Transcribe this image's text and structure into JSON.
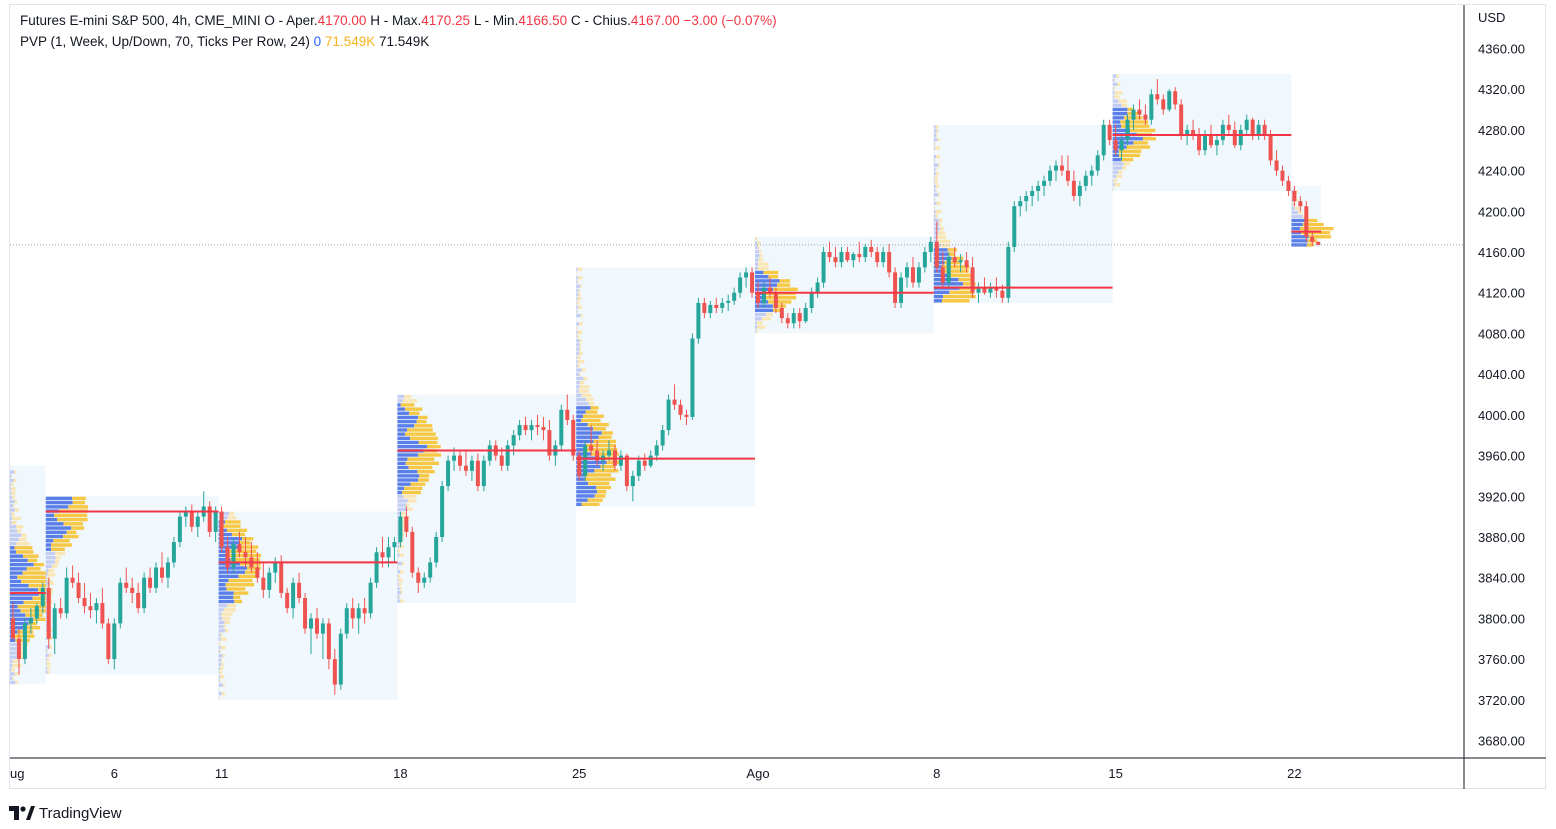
{
  "legend": {
    "line1": {
      "symbol_text": "Futures E-mini S&P 500, 4h, CME_MINI",
      "open_label": "O - Aper.",
      "open_value": "4170.00",
      "high_label": "H - Max.",
      "high_value": "4170.25",
      "low_label": "L - Min.",
      "low_value": "4166.50",
      "close_label": "C - Chius.",
      "close_value": "4167.00",
      "change": "−3.00 (−0.07%)"
    },
    "line2": {
      "indicator": "PVP (1, Week, Up/Down, 70, Ticks Per Row, 24)",
      "value_blue": "0",
      "value_yellow": "71.549K",
      "value_dark": "71.549K"
    }
  },
  "brand": {
    "name": "TradingView",
    "logo_icon": "tradingview-logo-icon"
  },
  "colors": {
    "up": "#26a69a",
    "down": "#ef5350",
    "poc": "#f23645",
    "profile_bg": "#e3f2fb",
    "vol_up": "#5b7fe8",
    "vol_down": "#f7c845",
    "vol_up_light": "#c3cdf3",
    "vol_down_light": "#fae6b4"
  },
  "chart_data": {
    "type": "candlestick",
    "timeframe": "4h",
    "currency": "USD",
    "ylim": [
      3660,
      4380
    ],
    "yticks": [
      "3680.00",
      "3720.00",
      "3760.00",
      "3800.00",
      "3840.00",
      "3880.00",
      "3920.00",
      "3960.00",
      "4000.00",
      "4040.00",
      "4080.00",
      "4120.00",
      "4160.00",
      "4200.00",
      "4240.00",
      "4280.00",
      "4320.00",
      "4360.00"
    ],
    "x_labels": [
      {
        "label": "ug",
        "index": 0
      },
      {
        "label": "6",
        "index": 17
      },
      {
        "label": "11",
        "index": 35
      },
      {
        "label": "18",
        "index": 65
      },
      {
        "label": "25",
        "index": 95
      },
      {
        "label": "Ago",
        "index": 125
      },
      {
        "label": "8",
        "index": 155
      },
      {
        "label": "15",
        "index": 185
      },
      {
        "label": "22",
        "index": 215
      }
    ],
    "last_price": 4167.0,
    "weekly_profiles": [
      {
        "start": 0,
        "end": 6,
        "top": 3950,
        "bottom": 3735,
        "poc": 3825
      },
      {
        "start": 6,
        "end": 35,
        "top": 3920,
        "bottom": 3745,
        "poc": 3905
      },
      {
        "start": 35,
        "end": 65,
        "top": 3905,
        "bottom": 3720,
        "poc": 3855
      },
      {
        "start": 65,
        "end": 95,
        "top": 4020,
        "bottom": 3815,
        "poc": 3965
      },
      {
        "start": 95,
        "end": 125,
        "top": 4145,
        "bottom": 3910,
        "poc": 3957
      },
      {
        "start": 125,
        "end": 155,
        "top": 4175,
        "bottom": 4080,
        "poc": 4120
      },
      {
        "start": 155,
        "end": 185,
        "top": 4285,
        "bottom": 4110,
        "poc": 4125
      },
      {
        "start": 185,
        "end": 215,
        "top": 4335,
        "bottom": 4220,
        "poc": 4275
      },
      {
        "start": 215,
        "end": 220,
        "top": 4225,
        "bottom": 4165,
        "poc": 4180
      }
    ],
    "candles": [
      [
        3800,
        3815,
        3780,
        3780
      ],
      [
        3780,
        3790,
        3745,
        3760
      ],
      [
        3760,
        3800,
        3755,
        3795
      ],
      [
        3795,
        3810,
        3785,
        3800
      ],
      [
        3800,
        3815,
        3795,
        3812
      ],
      [
        3812,
        3835,
        3805,
        3830
      ],
      [
        3830,
        3840,
        3770,
        3780
      ],
      [
        3780,
        3815,
        3765,
        3810
      ],
      [
        3810,
        3820,
        3800,
        3805
      ],
      [
        3805,
        3850,
        3800,
        3840
      ],
      [
        3840,
        3852,
        3830,
        3835
      ],
      [
        3835,
        3845,
        3815,
        3820
      ],
      [
        3820,
        3835,
        3805,
        3812
      ],
      [
        3812,
        3825,
        3800,
        3808
      ],
      [
        3808,
        3820,
        3795,
        3815
      ],
      [
        3815,
        3830,
        3790,
        3795
      ],
      [
        3795,
        3800,
        3755,
        3760
      ],
      [
        3760,
        3800,
        3750,
        3795
      ],
      [
        3795,
        3840,
        3790,
        3835
      ],
      [
        3835,
        3850,
        3825,
        3830
      ],
      [
        3830,
        3840,
        3815,
        3825
      ],
      [
        3825,
        3835,
        3805,
        3810
      ],
      [
        3810,
        3845,
        3805,
        3840
      ],
      [
        3840,
        3850,
        3825,
        3830
      ],
      [
        3830,
        3855,
        3825,
        3850
      ],
      [
        3850,
        3865,
        3835,
        3840
      ],
      [
        3840,
        3860,
        3830,
        3855
      ],
      [
        3855,
        3880,
        3850,
        3875
      ],
      [
        3875,
        3905,
        3870,
        3900
      ],
      [
        3900,
        3910,
        3890,
        3905
      ],
      [
        3905,
        3912,
        3885,
        3890
      ],
      [
        3890,
        3905,
        3880,
        3900
      ],
      [
        3900,
        3925,
        3895,
        3910
      ],
      [
        3910,
        3915,
        3880,
        3885
      ],
      [
        3885,
        3910,
        3875,
        3905
      ],
      [
        3905,
        3910,
        3865,
        3870
      ],
      [
        3870,
        3880,
        3845,
        3850
      ],
      [
        3850,
        3878,
        3845,
        3873
      ],
      [
        3873,
        3885,
        3860,
        3865
      ],
      [
        3865,
        3880,
        3850,
        3860
      ],
      [
        3860,
        3875,
        3845,
        3850
      ],
      [
        3850,
        3865,
        3835,
        3840
      ],
      [
        3840,
        3855,
        3820,
        3828
      ],
      [
        3828,
        3850,
        3820,
        3845
      ],
      [
        3845,
        3860,
        3835,
        3855
      ],
      [
        3855,
        3862,
        3820,
        3825
      ],
      [
        3825,
        3830,
        3805,
        3810
      ],
      [
        3810,
        3840,
        3800,
        3835
      ],
      [
        3835,
        3845,
        3815,
        3820
      ],
      [
        3820,
        3825,
        3785,
        3790
      ],
      [
        3790,
        3805,
        3765,
        3800
      ],
      [
        3800,
        3810,
        3780,
        3785
      ],
      [
        3785,
        3800,
        3760,
        3795
      ],
      [
        3795,
        3800,
        3750,
        3760
      ],
      [
        3760,
        3770,
        3725,
        3735
      ],
      [
        3735,
        3790,
        3730,
        3785
      ],
      [
        3785,
        3815,
        3780,
        3810
      ],
      [
        3810,
        3820,
        3790,
        3800
      ],
      [
        3800,
        3815,
        3785,
        3810
      ],
      [
        3810,
        3820,
        3795,
        3805
      ],
      [
        3805,
        3840,
        3800,
        3835
      ],
      [
        3835,
        3870,
        3830,
        3865
      ],
      [
        3865,
        3880,
        3850,
        3860
      ],
      [
        3860,
        3880,
        3850,
        3870
      ],
      [
        3870,
        3880,
        3855,
        3875
      ],
      [
        3875,
        3905,
        3870,
        3900
      ],
      [
        3900,
        3910,
        3880,
        3885
      ],
      [
        3885,
        3890,
        3840,
        3845
      ],
      [
        3845,
        3850,
        3825,
        3835
      ],
      [
        3835,
        3845,
        3830,
        3840
      ],
      [
        3840,
        3860,
        3835,
        3855
      ],
      [
        3855,
        3885,
        3850,
        3880
      ],
      [
        3880,
        3935,
        3875,
        3930
      ],
      [
        3930,
        3960,
        3925,
        3955
      ],
      [
        3955,
        3968,
        3945,
        3960
      ],
      [
        3960,
        3965,
        3945,
        3950
      ],
      [
        3950,
        3965,
        3940,
        3945
      ],
      [
        3945,
        3960,
        3935,
        3955
      ],
      [
        3955,
        3962,
        3925,
        3930
      ],
      [
        3930,
        3960,
        3925,
        3955
      ],
      [
        3955,
        3975,
        3950,
        3970
      ],
      [
        3970,
        3975,
        3955,
        3960
      ],
      [
        3960,
        3968,
        3945,
        3950
      ],
      [
        3950,
        3975,
        3945,
        3970
      ],
      [
        3970,
        3985,
        3960,
        3980
      ],
      [
        3980,
        3995,
        3975,
        3990
      ],
      [
        3990,
        3998,
        3980,
        3985
      ],
      [
        3985,
        3995,
        3975,
        3990
      ],
      [
        3990,
        4000,
        3980,
        3988
      ],
      [
        3988,
        3998,
        3975,
        3985
      ],
      [
        3985,
        3995,
        3955,
        3960
      ],
      [
        3960,
        3975,
        3950,
        3970
      ],
      [
        3970,
        4010,
        3965,
        4005
      ],
      [
        4005,
        4020,
        3990,
        3995
      ],
      [
        3995,
        4000,
        3955,
        3960
      ],
      [
        3960,
        3965,
        3935,
        3940
      ],
      [
        3940,
        3975,
        3935,
        3970
      ],
      [
        3970,
        3990,
        3960,
        3965
      ],
      [
        3965,
        3975,
        3950,
        3955
      ],
      [
        3955,
        3965,
        3945,
        3960
      ],
      [
        3960,
        3975,
        3955,
        3965
      ],
      [
        3965,
        3970,
        3945,
        3950
      ],
      [
        3950,
        3965,
        3945,
        3960
      ],
      [
        3960,
        3962,
        3925,
        3930
      ],
      [
        3930,
        3945,
        3915,
        3940
      ],
      [
        3940,
        3960,
        3935,
        3955
      ],
      [
        3955,
        3962,
        3945,
        3950
      ],
      [
        3950,
        3965,
        3948,
        3960
      ],
      [
        3960,
        3975,
        3955,
        3970
      ],
      [
        3970,
        3990,
        3965,
        3985
      ],
      [
        3985,
        4020,
        3980,
        4015
      ],
      [
        4015,
        4030,
        4005,
        4010
      ],
      [
        4010,
        4015,
        3995,
        4000
      ],
      [
        4000,
        4005,
        3990,
        3998
      ],
      [
        3998,
        4080,
        3995,
        4075
      ],
      [
        4075,
        4115,
        4070,
        4110
      ],
      [
        4110,
        4115,
        4095,
        4100
      ],
      [
        4100,
        4112,
        4095,
        4108
      ],
      [
        4108,
        4115,
        4100,
        4105
      ],
      [
        4105,
        4115,
        4100,
        4110
      ],
      [
        4110,
        4118,
        4102,
        4112
      ],
      [
        4112,
        4125,
        4108,
        4120
      ],
      [
        4120,
        4140,
        4115,
        4135
      ],
      [
        4135,
        4145,
        4125,
        4140
      ],
      [
        4140,
        4145,
        4115,
        4120
      ],
      [
        4120,
        4130,
        4105,
        4110
      ],
      [
        4110,
        4130,
        4105,
        4125
      ],
      [
        4125,
        4135,
        4115,
        4120
      ],
      [
        4120,
        4125,
        4100,
        4105
      ],
      [
        4105,
        4110,
        4090,
        4095
      ],
      [
        4095,
        4100,
        4085,
        4090
      ],
      [
        4090,
        4105,
        4085,
        4100
      ],
      [
        4100,
        4105,
        4085,
        4092
      ],
      [
        4092,
        4110,
        4090,
        4105
      ],
      [
        4105,
        4125,
        4100,
        4120
      ],
      [
        4120,
        4135,
        4115,
        4130
      ],
      [
        4130,
        4165,
        4125,
        4160
      ],
      [
        4160,
        4170,
        4150,
        4155
      ],
      [
        4155,
        4165,
        4145,
        4150
      ],
      [
        4150,
        4165,
        4145,
        4160
      ],
      [
        4160,
        4165,
        4150,
        4152
      ],
      [
        4152,
        4160,
        4145,
        4158
      ],
      [
        4158,
        4170,
        4150,
        4155
      ],
      [
        4155,
        4168,
        4150,
        4165
      ],
      [
        4165,
        4172,
        4155,
        4160
      ],
      [
        4160,
        4165,
        4145,
        4150
      ],
      [
        4150,
        4165,
        4145,
        4160
      ],
      [
        4160,
        4168,
        4135,
        4140
      ],
      [
        4140,
        4145,
        4105,
        4110
      ],
      [
        4110,
        4140,
        4105,
        4135
      ],
      [
        4135,
        4150,
        4125,
        4145
      ],
      [
        4145,
        4155,
        4125,
        4130
      ],
      [
        4130,
        4150,
        4125,
        4145
      ],
      [
        4145,
        4165,
        4140,
        4160
      ],
      [
        4160,
        4175,
        4150,
        4170
      ],
      [
        4170,
        4190,
        4140,
        4145
      ],
      [
        4145,
        4160,
        4125,
        4130
      ],
      [
        4130,
        4160,
        4125,
        4155
      ],
      [
        4155,
        4165,
        4145,
        4150
      ],
      [
        4150,
        4158,
        4140,
        4152
      ],
      [
        4152,
        4160,
        4140,
        4145
      ],
      [
        4145,
        4155,
        4115,
        4120
      ],
      [
        4120,
        4130,
        4110,
        4125
      ],
      [
        4125,
        4135,
        4118,
        4120
      ],
      [
        4120,
        4130,
        4115,
        4125
      ],
      [
        4125,
        4135,
        4115,
        4122
      ],
      [
        4122,
        4128,
        4110,
        4115
      ],
      [
        4115,
        4170,
        4110,
        4165
      ],
      [
        4165,
        4210,
        4160,
        4205
      ],
      [
        4205,
        4215,
        4195,
        4210
      ],
      [
        4210,
        4220,
        4200,
        4215
      ],
      [
        4215,
        4225,
        4205,
        4220
      ],
      [
        4220,
        4230,
        4210,
        4225
      ],
      [
        4225,
        4235,
        4215,
        4230
      ],
      [
        4230,
        4245,
        4225,
        4240
      ],
      [
        4240,
        4250,
        4230,
        4245
      ],
      [
        4245,
        4255,
        4235,
        4240
      ],
      [
        4240,
        4255,
        4225,
        4230
      ],
      [
        4230,
        4240,
        4210,
        4215
      ],
      [
        4215,
        4230,
        4205,
        4225
      ],
      [
        4225,
        4240,
        4220,
        4235
      ],
      [
        4235,
        4245,
        4225,
        4240
      ],
      [
        4240,
        4260,
        4235,
        4255
      ],
      [
        4255,
        4290,
        4250,
        4285
      ],
      [
        4285,
        4290,
        4265,
        4270
      ],
      [
        4270,
        4285,
        4255,
        4260
      ],
      [
        4260,
        4275,
        4250,
        4270
      ],
      [
        4270,
        4295,
        4265,
        4290
      ],
      [
        4290,
        4305,
        4280,
        4300
      ],
      [
        4300,
        4310,
        4290,
        4295
      ],
      [
        4295,
        4305,
        4285,
        4290
      ],
      [
        4290,
        4320,
        4285,
        4315
      ],
      [
        4315,
        4330,
        4305,
        4310
      ],
      [
        4310,
        4315,
        4295,
        4300
      ],
      [
        4300,
        4320,
        4298,
        4318
      ],
      [
        4318,
        4322,
        4300,
        4305
      ],
      [
        4305,
        4310,
        4270,
        4275
      ],
      [
        4275,
        4285,
        4265,
        4280
      ],
      [
        4280,
        4290,
        4270,
        4275
      ],
      [
        4275,
        4282,
        4255,
        4260
      ],
      [
        4260,
        4280,
        4255,
        4275
      ],
      [
        4275,
        4285,
        4262,
        4265
      ],
      [
        4265,
        4275,
        4255,
        4270
      ],
      [
        4270,
        4290,
        4265,
        4285
      ],
      [
        4285,
        4295,
        4275,
        4280
      ],
      [
        4280,
        4288,
        4262,
        4265
      ],
      [
        4265,
        4285,
        4260,
        4280
      ],
      [
        4280,
        4295,
        4275,
        4290
      ],
      [
        4290,
        4292,
        4270,
        4275
      ],
      [
        4275,
        4290,
        4270,
        4285
      ],
      [
        4285,
        4290,
        4270,
        4275
      ],
      [
        4275,
        4280,
        4245,
        4250
      ],
      [
        4250,
        4260,
        4235,
        4240
      ],
      [
        4240,
        4245,
        4225,
        4230
      ],
      [
        4230,
        4235,
        4215,
        4220
      ],
      [
        4220,
        4225,
        4205,
        4210
      ],
      [
        4210,
        4215,
        4200,
        4205
      ],
      [
        4205,
        4210,
        4170,
        4175
      ],
      [
        4175,
        4180,
        4166,
        4170
      ],
      [
        4170,
        4170.25,
        4166.5,
        4167
      ]
    ]
  }
}
